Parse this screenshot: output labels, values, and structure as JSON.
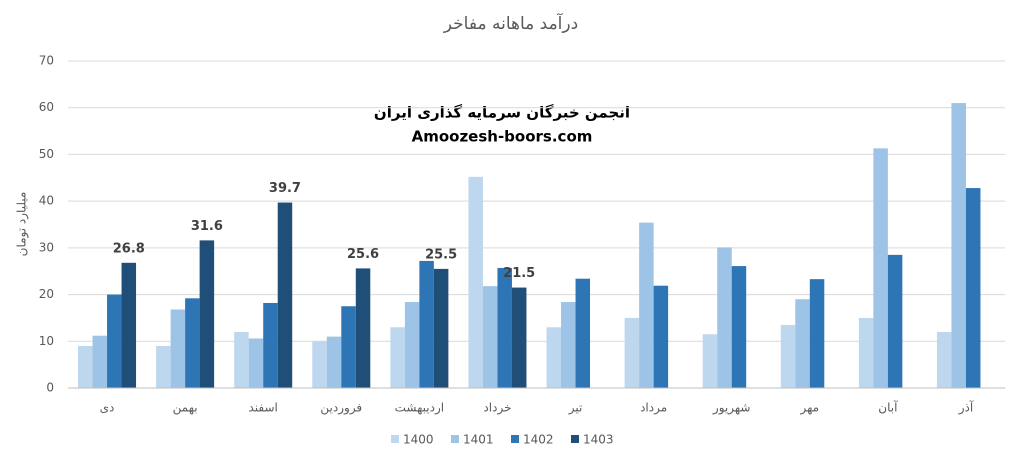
{
  "chart_data": {
    "type": "bar",
    "title": "درآمد ماهانه مفاخر",
    "annotations": [
      "انجمن خبرگان سرمایه گذاری ایران",
      "Amoozesh-boors.com"
    ],
    "y_label": "میلیارد تومان",
    "categories": [
      "دی",
      "بهمن",
      "اسفند",
      "فروردین",
      "اردیبهشت",
      "خرداد",
      "تیر",
      "مرداد",
      "شهریور",
      "مهر",
      "آبان",
      "آذر"
    ],
    "series": [
      {
        "name": "1400",
        "color": "#bdd7ee",
        "values": [
          9,
          9,
          12,
          10,
          13,
          45.2,
          13,
          15,
          11.5,
          13.5,
          15,
          12
        ]
      },
      {
        "name": "1401",
        "color": "#9dc3e6",
        "values": [
          11.2,
          16.8,
          10.6,
          11,
          18.4,
          21.8,
          18.4,
          35.4,
          30.1,
          19,
          51.3,
          61
        ]
      },
      {
        "name": "1402",
        "color": "#2e75b6",
        "values": [
          20,
          19.2,
          18.2,
          17.5,
          27.2,
          25.7,
          23.4,
          21.9,
          26.1,
          23.3,
          28.5,
          42.8
        ]
      },
      {
        "name": "1403",
        "color": "#1f4e79",
        "data_labels": true,
        "values": [
          26.8,
          31.6,
          39.7,
          25.6,
          25.5,
          21.5,
          null,
          null,
          null,
          null,
          null,
          null
        ]
      }
    ],
    "ylim": [
      0,
      70
    ],
    "yticks": [
      0,
      10,
      20,
      30,
      40,
      50,
      60,
      70
    ],
    "grid": true,
    "legend": "bottom"
  }
}
